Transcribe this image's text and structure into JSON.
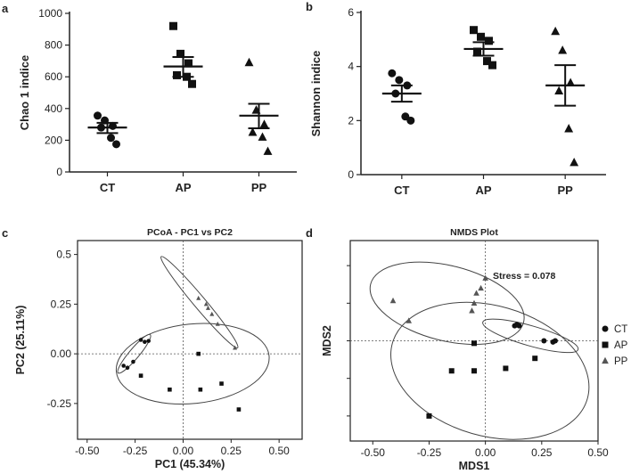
{
  "chart_data": [
    {
      "panel": "a",
      "type": "scatter",
      "title": "",
      "xlabel": "",
      "ylabel": "Chao 1 indice",
      "categories": [
        "CT",
        "AP",
        "PP"
      ],
      "ylim": [
        0,
        1000
      ],
      "yticks": [
        0,
        200,
        400,
        600,
        800,
        1000
      ],
      "series": [
        {
          "name": "CT",
          "marker": "circle",
          "values": [
            355,
            325,
            290,
            280,
            215,
            175
          ],
          "mean": 280,
          "sem_low": 245,
          "sem_high": 310
        },
        {
          "name": "AP",
          "marker": "square",
          "values": [
            920,
            745,
            685,
            610,
            600,
            555
          ],
          "mean": 665,
          "sem_low": 600,
          "sem_high": 725
        },
        {
          "name": "PP",
          "marker": "triangle",
          "values": [
            690,
            390,
            300,
            250,
            220,
            130
          ],
          "mean": 355,
          "sem_low": 275,
          "sem_high": 430
        }
      ]
    },
    {
      "panel": "b",
      "type": "scatter",
      "title": "",
      "xlabel": "",
      "ylabel": "Shannon indice",
      "categories": [
        "CT",
        "AP",
        "PP"
      ],
      "ylim": [
        0,
        6
      ],
      "yticks": [
        0,
        2,
        4,
        6
      ],
      "series": [
        {
          "name": "CT",
          "marker": "circle",
          "values": [
            3.75,
            3.5,
            3.3,
            3.0,
            2.15,
            2.0
          ],
          "mean": 3.0,
          "sem_low": 2.7,
          "sem_high": 3.3
        },
        {
          "name": "AP",
          "marker": "square",
          "values": [
            5.35,
            5.1,
            4.95,
            4.55,
            4.2,
            4.05
          ],
          "mean": 4.65,
          "sem_low": 4.4,
          "sem_high": 4.9
        },
        {
          "name": "PP",
          "marker": "triangle",
          "values": [
            5.3,
            4.6,
            3.4,
            3.1,
            1.7,
            0.45
          ],
          "mean": 3.3,
          "sem_low": 2.55,
          "sem_high": 4.05
        }
      ]
    },
    {
      "panel": "c",
      "type": "scatter",
      "title": "PCoA - PC1 vs PC2",
      "xlabel": "PC1 (45.34%)",
      "ylabel": "PC2 (25.11%)",
      "xlim": [
        -0.55,
        0.62
      ],
      "ylim": [
        -0.43,
        0.57
      ],
      "xticks": [
        "-0.50",
        "-0.25",
        "0.00",
        "0.25",
        "0.50"
      ],
      "xtick_values": [
        -0.5,
        -0.25,
        0,
        0.25,
        0.5
      ],
      "yticks": [
        "0.5",
        "0.25",
        "0.00",
        "-0.25"
      ],
      "ytick_values": [
        0.5,
        0.25,
        0,
        -0.25
      ],
      "series": [
        {
          "name": "CT",
          "marker": "circle",
          "points": [
            [
              -0.29,
              -0.07
            ],
            [
              -0.31,
              -0.06
            ],
            [
              -0.26,
              -0.04
            ],
            [
              -0.2,
              0.06
            ],
            [
              -0.18,
              0.065
            ],
            [
              -0.22,
              0.07
            ]
          ]
        },
        {
          "name": "AP",
          "marker": "square",
          "points": [
            [
              -0.22,
              -0.11
            ],
            [
              -0.07,
              -0.18
            ],
            [
              0.08,
              0.0
            ],
            [
              0.09,
              -0.18
            ],
            [
              0.2,
              -0.15
            ],
            [
              0.29,
              -0.28
            ]
          ]
        },
        {
          "name": "PP",
          "marker": "triangle",
          "points": [
            [
              0.08,
              0.28
            ],
            [
              0.12,
              0.25
            ],
            [
              0.13,
              0.23
            ],
            [
              0.15,
              0.2
            ],
            [
              0.18,
              0.15
            ],
            [
              0.27,
              0.03
            ]
          ]
        }
      ],
      "ellipses": [
        {
          "group": "all",
          "center": [
            0.05,
            -0.05
          ],
          "rx": 0.4,
          "ry": 0.2,
          "angle_deg": 6
        },
        {
          "group": "CT",
          "center": [
            -0.255,
            0.0
          ],
          "rx": 0.13,
          "ry": 0.025,
          "angle_deg": 50
        },
        {
          "group": "PP",
          "center": [
            0.085,
            0.26
          ],
          "rx": 0.31,
          "ry": 0.03,
          "angle_deg": -50
        }
      ]
    },
    {
      "panel": "d",
      "type": "scatter",
      "title": "NMDS Plot",
      "xlabel": "MDS1",
      "ylabel": "MDS2",
      "annotation": "Stress = 0.078",
      "xlim": [
        -0.6,
        0.5
      ],
      "ylim": [
        -0.4,
        0.4
      ],
      "xticks": [
        "-0.50",
        "-0.25",
        "0.00",
        "0.25",
        "0.50"
      ],
      "xtick_values": [
        -0.5,
        -0.25,
        0,
        0.25,
        0.5
      ],
      "legend_position": "right",
      "legend": [
        {
          "name": "CT",
          "marker": "circle"
        },
        {
          "name": "AP",
          "marker": "square"
        },
        {
          "name": "PP",
          "marker": "triangle"
        }
      ],
      "series": [
        {
          "name": "CT",
          "marker": "circle",
          "points": [
            [
              0.13,
              0.06
            ],
            [
              0.14,
              0.065
            ],
            [
              0.15,
              0.06
            ],
            [
              0.26,
              0.0
            ],
            [
              0.3,
              -0.005
            ],
            [
              0.31,
              0.0
            ]
          ]
        },
        {
          "name": "AP",
          "marker": "square",
          "points": [
            [
              -0.05,
              -0.01
            ],
            [
              -0.15,
              -0.12
            ],
            [
              -0.05,
              -0.12
            ],
            [
              0.09,
              -0.11
            ],
            [
              0.22,
              -0.07
            ],
            [
              -0.25,
              -0.3
            ]
          ]
        },
        {
          "name": "PP",
          "marker": "triangle",
          "points": [
            [
              -0.41,
              0.16
            ],
            [
              -0.34,
              0.08
            ],
            [
              0.0,
              0.25
            ],
            [
              -0.02,
              0.21
            ],
            [
              -0.05,
              0.15
            ],
            [
              -0.06,
              0.12
            ],
            [
              -0.04,
              0.19
            ]
          ]
        }
      ],
      "ellipses": [
        {
          "group": "PP",
          "center": [
            -0.17,
            0.15
          ],
          "rx": 0.35,
          "ry": 0.15,
          "angle_deg": -14
        },
        {
          "group": "AP",
          "center": [
            0.02,
            -0.12
          ],
          "rx": 0.45,
          "ry": 0.26,
          "angle_deg": -16
        },
        {
          "group": "CT",
          "center": [
            0.2,
            0.02
          ],
          "rx": 0.22,
          "ry": 0.04,
          "angle_deg": -16
        }
      ]
    }
  ]
}
